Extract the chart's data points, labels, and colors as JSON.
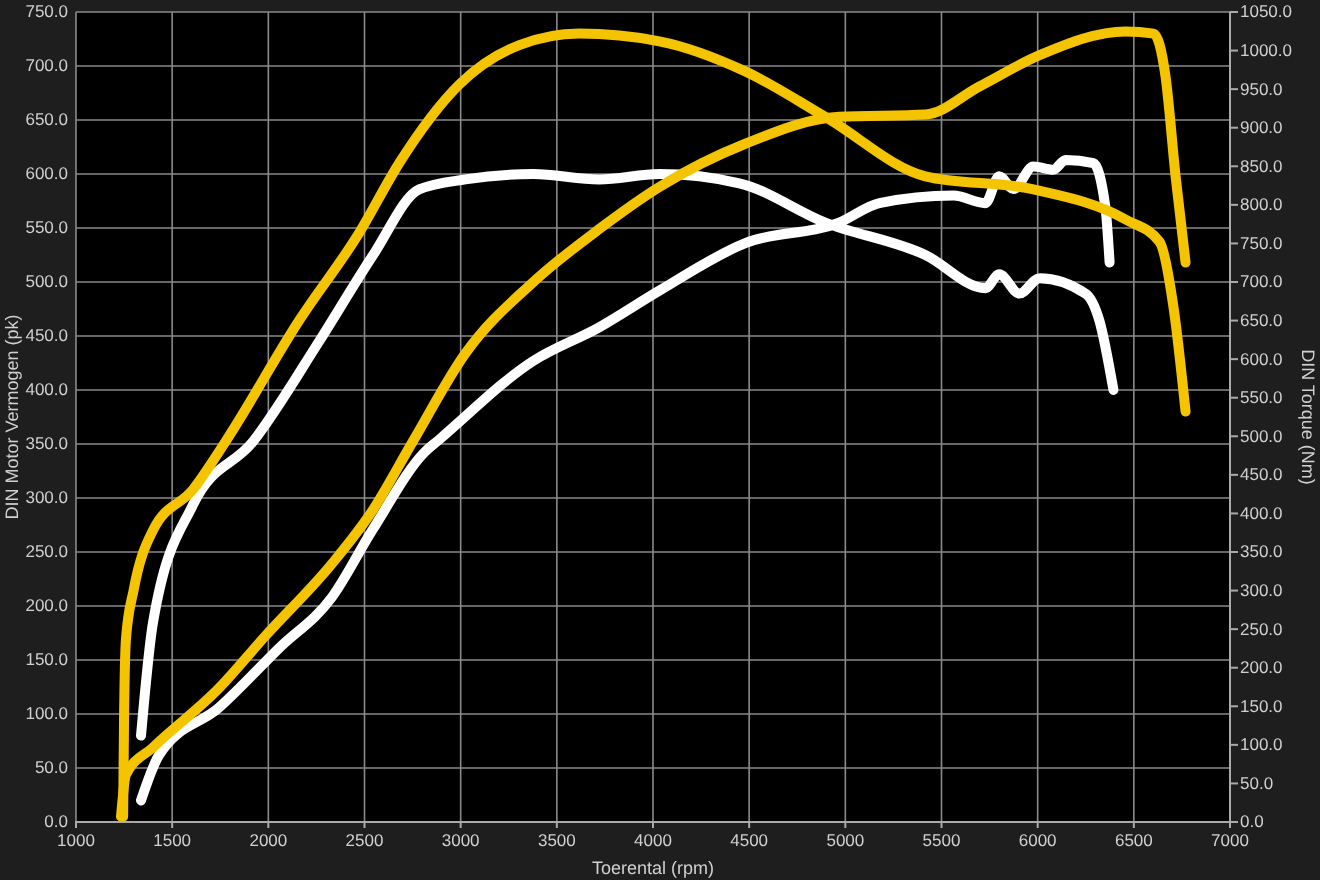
{
  "chart_data": {
    "type": "line",
    "xlabel": "Toerental (rpm)",
    "ylabel": "DIN Motor Vermogen (pk)",
    "y2label": "DIN Torque (Nm)",
    "xlim": [
      1000,
      7000
    ],
    "xticks": [
      1000,
      1500,
      2000,
      2500,
      3000,
      3500,
      4000,
      4500,
      5000,
      5500,
      6000,
      6500,
      7000
    ],
    "ylim": [
      0,
      750
    ],
    "yticks": [
      {
        "value": 0,
        "label": "0.0"
      },
      {
        "value": 50,
        "label": "50.0"
      },
      {
        "value": 100,
        "label": "100.0"
      },
      {
        "value": 150,
        "label": "150.0"
      },
      {
        "value": 200,
        "label": "200.0"
      },
      {
        "value": 250,
        "label": "250.0"
      },
      {
        "value": 300,
        "label": "300.0"
      },
      {
        "value": 350,
        "label": "350.0"
      },
      {
        "value": 400,
        "label": "400.0"
      },
      {
        "value": 450,
        "label": "450.0"
      },
      {
        "value": 500,
        "label": "500.0"
      },
      {
        "value": 550,
        "label": "550.0"
      },
      {
        "value": 600,
        "label": "600.0"
      },
      {
        "value": 650,
        "label": "650.0"
      },
      {
        "value": 700,
        "label": "700.0"
      },
      {
        "value": 750,
        "label": "750.0"
      }
    ],
    "y2lim": [
      0,
      1050
    ],
    "y2ticks": [
      {
        "value": 0,
        "label": "0.0"
      },
      {
        "value": 50,
        "label": "50.0"
      },
      {
        "value": 100,
        "label": "100.0"
      },
      {
        "value": 150,
        "label": "150.0"
      },
      {
        "value": 200,
        "label": "200.0"
      },
      {
        "value": 250,
        "label": "250.0"
      },
      {
        "value": 300,
        "label": "300.0"
      },
      {
        "value": 350,
        "label": "350.0"
      },
      {
        "value": 400,
        "label": "400.0"
      },
      {
        "value": 450,
        "label": "450.0"
      },
      {
        "value": 500,
        "label": "500.0"
      },
      {
        "value": 550,
        "label": "550.0"
      },
      {
        "value": 600,
        "label": "600.0"
      },
      {
        "value": 650,
        "label": "650.0"
      },
      {
        "value": 700,
        "label": "700.0"
      },
      {
        "value": 750,
        "label": "750.0"
      },
      {
        "value": 800,
        "label": "800.0"
      },
      {
        "value": 850,
        "label": "850.0"
      },
      {
        "value": 900,
        "label": "900.0"
      },
      {
        "value": 950,
        "label": "950.0"
      },
      {
        "value": 1000,
        "label": "1000.0"
      },
      {
        "value": 1050,
        "label": "1050.0"
      }
    ],
    "grid": true,
    "marker": "none",
    "line_style": "solid",
    "series": [
      {
        "color": "#ffffff",
        "axis": "y",
        "x": [
          1338,
          1432,
          1744,
          2056,
          2330,
          2540,
          2816,
          2888,
          3378,
          3720,
          4033,
          4480,
          4968,
          5177,
          5562,
          5728,
          5800,
          5874,
          5978,
          6082,
          6145,
          6290,
          6353,
          6374
        ],
        "values": [
          20,
          62,
          106,
          161,
          208,
          270,
          343,
          354,
          427,
          458,
          492,
          536,
          555,
          573,
          580,
          573,
          598,
          586,
          607,
          604,
          613,
          610,
          568,
          518
        ]
      },
      {
        "color": "#ffffff",
        "axis": "y2",
        "x": [
          1338,
          1400,
          1608,
          1920,
          2264,
          2545,
          2784,
          3025,
          3378,
          3720,
          4033,
          4449,
          4896,
          5416,
          5728,
          5800,
          5905,
          6010,
          6249,
          6322,
          6394
        ],
        "values": [
          112,
          258,
          411,
          493,
          623,
          735,
          820,
          833,
          840,
          833,
          840,
          828,
          777,
          735,
          692,
          710,
          685,
          705,
          685,
          649,
          560
        ]
      },
      {
        "color": "#f5c400",
        "axis": "y",
        "x": [
          1234,
          1260,
          1400,
          1744,
          1983,
          2330,
          2540,
          2750,
          3025,
          3378,
          3720,
          4033,
          4480,
          4968,
          5416,
          5697,
          6010,
          6457,
          6603,
          6665,
          6717,
          6769
        ],
        "values": [
          5,
          44,
          69,
          124,
          172,
          239,
          288,
          352,
          434,
          500,
          549,
          588,
          628,
          653,
          655,
          681,
          710,
          732,
          730,
          690,
          598,
          518
        ]
      },
      {
        "color": "#f5c400",
        "axis": "y2",
        "x": [
          1245,
          1250,
          1260,
          1300,
          1400,
          1608,
          1777,
          2160,
          2473,
          2680,
          2993,
          3305,
          3617,
          4033,
          4480,
          4896,
          5416,
          5978,
          6457,
          6634,
          6707,
          6769
        ],
        "values": [
          7,
          140,
          238,
          301,
          378,
          431,
          493,
          650,
          764,
          854,
          956,
          1007,
          1022,
          1012,
          973,
          914,
          837,
          820,
          781,
          752,
          666,
          532
        ]
      }
    ]
  }
}
